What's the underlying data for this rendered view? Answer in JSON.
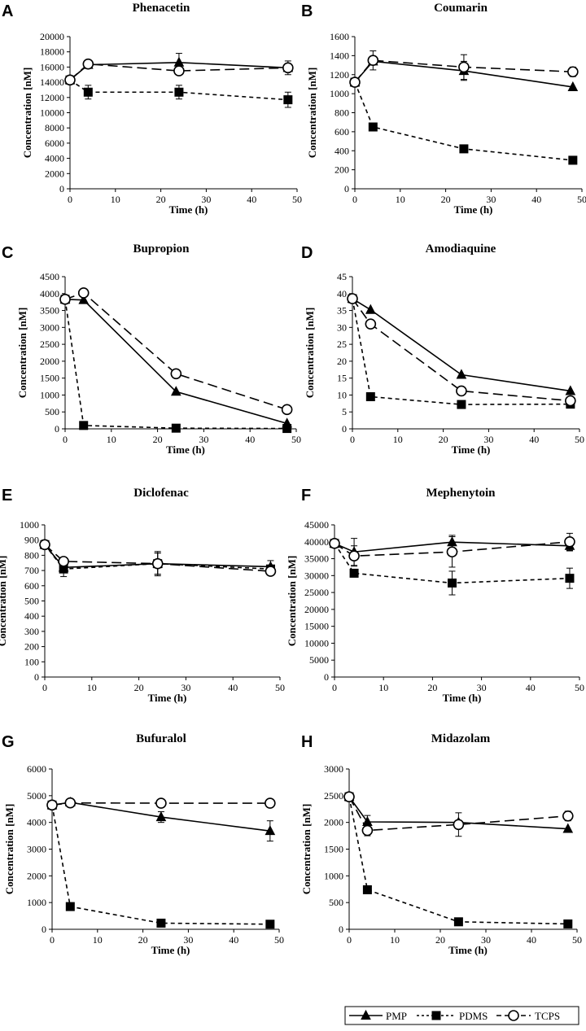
{
  "figure_title": "",
  "legend": {
    "entries": [
      {
        "name": "PMP",
        "marker": "triangle",
        "line": "solid"
      },
      {
        "name": "PDMS",
        "marker": "square",
        "line": "dashed"
      },
      {
        "name": "TCPS",
        "marker": "circle",
        "line": "longdash"
      }
    ]
  },
  "chart_data": [
    {
      "panel": "A",
      "type": "line",
      "title": "Phenacetin",
      "xlabel": "Time (h)",
      "ylabel": "Concentration  [nM]",
      "xlim": [
        0,
        50
      ],
      "xticks": [
        0,
        10,
        20,
        30,
        40,
        50
      ],
      "ylim": [
        0,
        20000
      ],
      "yticks": [
        0,
        2000,
        4000,
        6000,
        8000,
        10000,
        12000,
        14000,
        16000,
        18000,
        20000
      ],
      "series": [
        {
          "name": "PMP",
          "x": [
            0,
            4,
            24,
            48
          ],
          "y": [
            14300,
            16300,
            16600,
            15900
          ],
          "err": [
            0,
            0,
            1200,
            0
          ]
        },
        {
          "name": "PDMS",
          "x": [
            0,
            4,
            24,
            48
          ],
          "y": [
            14300,
            12700,
            12700,
            11700
          ],
          "err": [
            0,
            900,
            900,
            1000
          ]
        },
        {
          "name": "TCPS",
          "x": [
            0,
            4,
            24,
            48
          ],
          "y": [
            14300,
            16400,
            15500,
            15900
          ],
          "err": [
            0,
            0,
            0,
            900
          ]
        }
      ]
    },
    {
      "panel": "B",
      "type": "line",
      "title": "Coumarin",
      "xlabel": "Time (h)",
      "ylabel": "Concentration  [nM]",
      "xlim": [
        0,
        50
      ],
      "xticks": [
        0,
        10,
        20,
        30,
        40,
        50
      ],
      "ylim": [
        0,
        1600
      ],
      "yticks": [
        0,
        200,
        400,
        600,
        800,
        1000,
        1200,
        1400,
        1600
      ],
      "series": [
        {
          "name": "PMP",
          "x": [
            0,
            4,
            24,
            48
          ],
          "y": [
            1120,
            1340,
            1240,
            1070
          ],
          "err": [
            0,
            0,
            100,
            0
          ]
        },
        {
          "name": "PDMS",
          "x": [
            0,
            4,
            24,
            48
          ],
          "y": [
            1120,
            650,
            420,
            300
          ],
          "err": [
            0,
            0,
            0,
            0
          ]
        },
        {
          "name": "TCPS",
          "x": [
            0,
            4,
            24,
            48
          ],
          "y": [
            1120,
            1350,
            1280,
            1230
          ],
          "err": [
            0,
            100,
            130,
            50
          ]
        }
      ]
    },
    {
      "panel": "C",
      "type": "line",
      "title": "Bupropion",
      "xlabel": "Time (h)",
      "ylabel": "Concentration  [nM]",
      "xlim": [
        0,
        50
      ],
      "xticks": [
        0,
        10,
        20,
        30,
        40,
        50
      ],
      "ylim": [
        0,
        4500
      ],
      "yticks": [
        0,
        500,
        1000,
        1500,
        2000,
        2500,
        3000,
        3500,
        4000,
        4500
      ],
      "series": [
        {
          "name": "PMP",
          "x": [
            0,
            4,
            24,
            48
          ],
          "y": [
            3830,
            3810,
            1100,
            160
          ],
          "err": [
            0,
            0,
            0,
            0
          ]
        },
        {
          "name": "PDMS",
          "x": [
            0,
            4,
            24,
            48
          ],
          "y": [
            3830,
            100,
            20,
            10
          ],
          "err": [
            0,
            0,
            0,
            0
          ]
        },
        {
          "name": "TCPS",
          "x": [
            0,
            4,
            24,
            48
          ],
          "y": [
            3830,
            4020,
            1630,
            570
          ],
          "err": [
            0,
            0,
            0,
            0
          ]
        }
      ]
    },
    {
      "panel": "D",
      "type": "line",
      "title": "Amodiaquine",
      "xlabel": "Time (h)",
      "ylabel": "Concentration  [nM]",
      "xlim": [
        0,
        50
      ],
      "xticks": [
        0,
        10,
        20,
        30,
        40,
        50
      ],
      "ylim": [
        0,
        45
      ],
      "yticks": [
        0,
        5,
        10,
        15,
        20,
        25,
        30,
        35,
        40,
        45
      ],
      "series": [
        {
          "name": "PMP",
          "x": [
            0,
            4,
            24,
            48
          ],
          "y": [
            38.5,
            35.2,
            16.0,
            11.2
          ],
          "err": [
            0,
            0,
            0,
            0
          ]
        },
        {
          "name": "PDMS",
          "x": [
            0,
            4,
            24,
            48
          ],
          "y": [
            38.5,
            9.5,
            7.2,
            7.3
          ],
          "err": [
            0,
            0,
            0,
            0
          ]
        },
        {
          "name": "TCPS",
          "x": [
            0,
            4,
            24,
            48
          ],
          "y": [
            38.5,
            31.0,
            11.2,
            8.3
          ],
          "err": [
            0,
            0,
            0,
            0
          ]
        }
      ]
    },
    {
      "panel": "E",
      "type": "line",
      "title": "Diclofenac",
      "xlabel": "Time (h)",
      "ylabel": "Concentration  [nM]",
      "xlim": [
        0,
        50
      ],
      "xticks": [
        0,
        10,
        20,
        30,
        40,
        50
      ],
      "ylim": [
        0,
        1000
      ],
      "yticks": [
        0,
        100,
        200,
        300,
        400,
        500,
        600,
        700,
        800,
        900,
        1000
      ],
      "series": [
        {
          "name": "PMP",
          "x": [
            0,
            4,
            24,
            48
          ],
          "y": [
            870,
            720,
            745,
            725
          ],
          "err": [
            0,
            0,
            70,
            40
          ]
        },
        {
          "name": "PDMS",
          "x": [
            0,
            4,
            24,
            48
          ],
          "y": [
            870,
            710,
            745,
            710
          ],
          "err": [
            0,
            50,
            70,
            0
          ]
        },
        {
          "name": "TCPS",
          "x": [
            0,
            4,
            24,
            48
          ],
          "y": [
            870,
            760,
            745,
            695
          ],
          "err": [
            0,
            0,
            80,
            0
          ]
        }
      ]
    },
    {
      "panel": "F",
      "type": "line",
      "title": "Mephenytoin",
      "xlabel": "Time (h)",
      "ylabel": "Concentration  [nM]",
      "xlim": [
        0,
        50
      ],
      "xticks": [
        0,
        10,
        20,
        30,
        40,
        50
      ],
      "ylim": [
        0,
        45000
      ],
      "yticks": [
        0,
        5000,
        10000,
        15000,
        20000,
        25000,
        30000,
        35000,
        40000,
        45000
      ],
      "series": [
        {
          "name": "PMP",
          "x": [
            0,
            4,
            24,
            48
          ],
          "y": [
            39500,
            37000,
            39900,
            38800
          ],
          "err": [
            0,
            4000,
            2000,
            1500
          ]
        },
        {
          "name": "PDMS",
          "x": [
            0,
            4,
            24,
            48
          ],
          "y": [
            39500,
            30700,
            27800,
            29200
          ],
          "err": [
            0,
            0,
            3500,
            3000
          ]
        },
        {
          "name": "TCPS",
          "x": [
            0,
            4,
            24,
            48
          ],
          "y": [
            39500,
            35800,
            37000,
            40000
          ],
          "err": [
            0,
            3000,
            4500,
            2500
          ]
        }
      ]
    },
    {
      "panel": "G",
      "type": "line",
      "title": "Bufuralol",
      "xlabel": "Time (h)",
      "ylabel": "Concentration  [nM]",
      "xlim": [
        0,
        50
      ],
      "xticks": [
        0,
        10,
        20,
        30,
        40,
        50
      ],
      "ylim": [
        0,
        6000
      ],
      "yticks": [
        0,
        1000,
        2000,
        3000,
        4000,
        5000,
        6000
      ],
      "series": [
        {
          "name": "PMP",
          "x": [
            0,
            4,
            24,
            48
          ],
          "y": [
            4650,
            4750,
            4200,
            3680
          ],
          "err": [
            0,
            0,
            200,
            380
          ]
        },
        {
          "name": "PDMS",
          "x": [
            0,
            4,
            24,
            48
          ],
          "y": [
            4650,
            850,
            230,
            190
          ],
          "err": [
            0,
            0,
            0,
            0
          ]
        },
        {
          "name": "TCPS",
          "x": [
            0,
            4,
            24,
            48
          ],
          "y": [
            4650,
            4730,
            4720,
            4720
          ],
          "err": [
            0,
            0,
            0,
            0
          ]
        }
      ]
    },
    {
      "panel": "H",
      "type": "line",
      "title": "Midazolam",
      "xlabel": "Time (h)",
      "ylabel": "Concentration  [nM]",
      "xlim": [
        0,
        50
      ],
      "xticks": [
        0,
        10,
        20,
        30,
        40,
        50
      ],
      "ylim": [
        0,
        3000
      ],
      "yticks": [
        0,
        500,
        1000,
        1500,
        2000,
        2500,
        3000
      ],
      "series": [
        {
          "name": "PMP",
          "x": [
            0,
            4,
            24,
            48
          ],
          "y": [
            2480,
            2010,
            2000,
            1880
          ],
          "err": [
            0,
            120,
            0,
            0
          ]
        },
        {
          "name": "PDMS",
          "x": [
            0,
            4,
            24,
            48
          ],
          "y": [
            2480,
            740,
            140,
            100
          ],
          "err": [
            0,
            0,
            0,
            0
          ]
        },
        {
          "name": "TCPS",
          "x": [
            0,
            4,
            24,
            48
          ],
          "y": [
            2480,
            1850,
            1960,
            2120
          ],
          "err": [
            0,
            100,
            220,
            90
          ]
        }
      ]
    }
  ]
}
